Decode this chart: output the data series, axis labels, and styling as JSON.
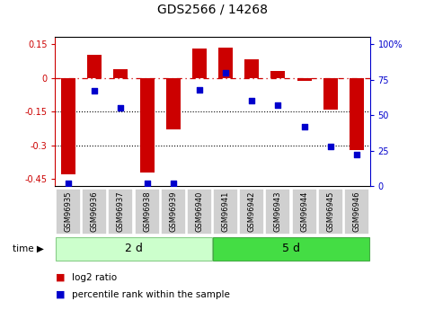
{
  "title": "GDS2566 / 14268",
  "samples": [
    "GSM96935",
    "GSM96936",
    "GSM96937",
    "GSM96938",
    "GSM96939",
    "GSM96940",
    "GSM96941",
    "GSM96942",
    "GSM96943",
    "GSM96944",
    "GSM96945",
    "GSM96946"
  ],
  "log2_ratio": [
    -0.43,
    0.1,
    0.04,
    -0.42,
    -0.23,
    0.13,
    0.135,
    0.08,
    0.03,
    -0.015,
    -0.14,
    -0.32
  ],
  "percentile_rank": [
    2,
    67,
    55,
    2,
    2,
    68,
    80,
    60,
    57,
    42,
    28,
    22
  ],
  "group1_label": "2 d",
  "group2_label": "5 d",
  "group1_count": 6,
  "group2_count": 6,
  "bar_color": "#cc0000",
  "dot_color": "#0000cc",
  "group1_bg": "#ccffcc",
  "group2_bg": "#44dd44",
  "sample_box_color": "#d0d0d0",
  "ylim_left": [
    -0.48,
    0.18
  ],
  "ylim_right": [
    0,
    105
  ],
  "yticks_left": [
    0.15,
    0.0,
    -0.15,
    -0.3,
    -0.45
  ],
  "ytick_labels_left": [
    "0.15",
    "0",
    "-0.15",
    "-0.3",
    "-0.45"
  ],
  "yticks_right": [
    100,
    75,
    50,
    25,
    0
  ],
  "ytick_labels_right": [
    "100%",
    "75",
    "50",
    "25",
    "0"
  ],
  "legend_label1": "log2 ratio",
  "legend_label2": "percentile rank within the sample",
  "time_label": "time",
  "title_fontsize": 10,
  "tick_fontsize": 7,
  "sample_fontsize": 6,
  "group_fontsize": 9
}
